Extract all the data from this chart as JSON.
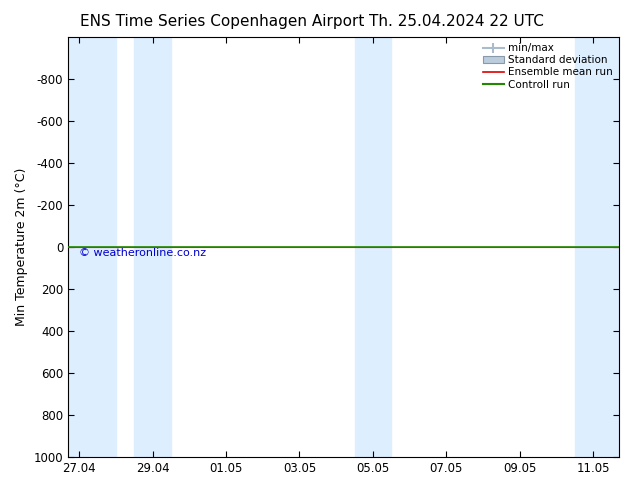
{
  "title_left": "ENS Time Series Copenhagen Airport",
  "title_right": "Th. 25.04.2024 22 UTC",
  "ylabel": "Min Temperature 2m (°C)",
  "ylim_bottom": 1000,
  "ylim_top": -1000,
  "yticks": [
    -800,
    -600,
    -400,
    -200,
    0,
    200,
    400,
    600,
    800,
    1000
  ],
  "x_tick_labels": [
    "27.04",
    "29.04",
    "01.05",
    "03.05",
    "05.05",
    "07.05",
    "09.05",
    "11.05"
  ],
  "x_tick_positions": [
    0,
    2,
    4,
    6,
    8,
    10,
    12,
    14
  ],
  "xlim": [
    -0.3,
    14.7
  ],
  "shaded_bands": [
    [
      -0.3,
      1.0
    ],
    [
      1.5,
      2.5
    ],
    [
      7.5,
      8.5
    ],
    [
      13.5,
      14.7
    ]
  ],
  "shade_color": "#ddeeff",
  "background_color": "#ffffff",
  "plot_bg_color": "#ffffff",
  "control_run_color": "#228800",
  "ensemble_mean_color": "#dd0000",
  "horizontal_line_y": 0,
  "watermark": "© weatheronline.co.nz",
  "watermark_color": "#0000cc",
  "legend_labels": [
    "min/max",
    "Standard deviation",
    "Ensemble mean run",
    "Controll run"
  ],
  "legend_colors": [
    "#aabbcc",
    "#bbccdd",
    "#dd0000",
    "#228800"
  ],
  "title_fontsize": 11,
  "axis_label_fontsize": 9,
  "tick_fontsize": 8.5
}
